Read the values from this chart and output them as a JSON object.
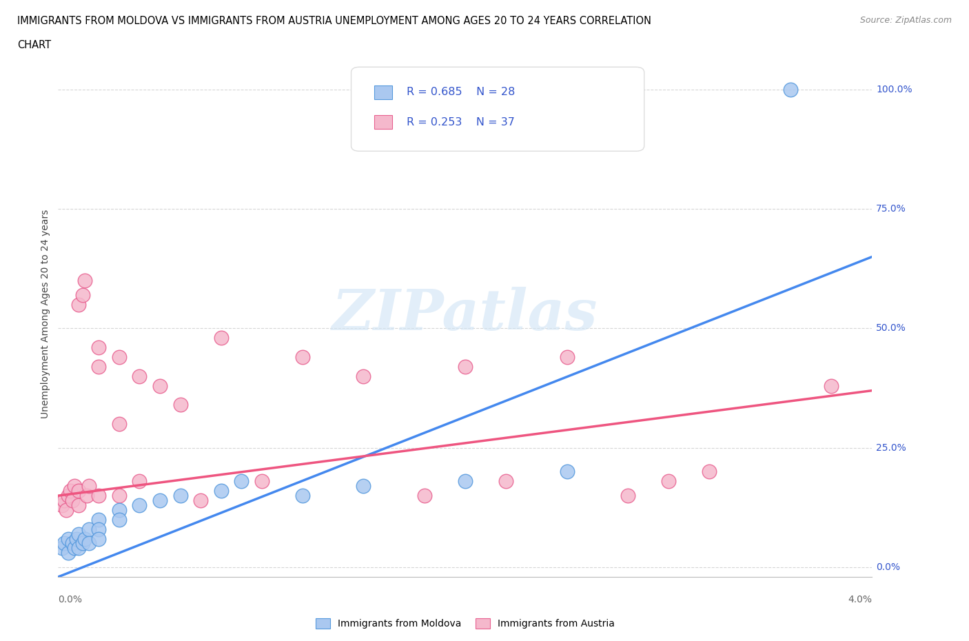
{
  "title_line1": "IMMIGRANTS FROM MOLDOVA VS IMMIGRANTS FROM AUSTRIA UNEMPLOYMENT AMONG AGES 20 TO 24 YEARS CORRELATION",
  "title_line2": "CHART",
  "source": "Source: ZipAtlas.com",
  "ylabel": "Unemployment Among Ages 20 to 24 years",
  "y_ticks": [
    0.0,
    0.25,
    0.5,
    0.75,
    1.0
  ],
  "y_tick_labels": [
    "0.0%",
    "25.0%",
    "50.0%",
    "75.0%",
    "100.0%"
  ],
  "x_range": [
    0.0,
    0.04
  ],
  "y_range": [
    -0.02,
    1.08
  ],
  "moldova_color": "#aac8f0",
  "moldova_edge_color": "#5599dd",
  "austria_color": "#f5b8cc",
  "austria_edge_color": "#e86090",
  "moldova_R": 0.685,
  "moldova_N": 28,
  "austria_R": 0.253,
  "austria_N": 37,
  "legend_text_color": "#3355cc",
  "watermark": "ZIPatlas",
  "moldova_x": [
    0.0002,
    0.0003,
    0.0005,
    0.0005,
    0.0007,
    0.0008,
    0.0009,
    0.001,
    0.001,
    0.0012,
    0.0013,
    0.0015,
    0.0015,
    0.002,
    0.002,
    0.002,
    0.003,
    0.003,
    0.004,
    0.005,
    0.006,
    0.008,
    0.009,
    0.012,
    0.015,
    0.02,
    0.025,
    0.036
  ],
  "moldova_y": [
    0.04,
    0.05,
    0.03,
    0.06,
    0.05,
    0.04,
    0.06,
    0.04,
    0.07,
    0.05,
    0.06,
    0.08,
    0.05,
    0.1,
    0.08,
    0.06,
    0.12,
    0.1,
    0.13,
    0.14,
    0.15,
    0.16,
    0.18,
    0.15,
    0.17,
    0.18,
    0.2,
    1.0
  ],
  "austria_x": [
    0.0002,
    0.0003,
    0.0004,
    0.0005,
    0.0006,
    0.0007,
    0.0008,
    0.001,
    0.001,
    0.001,
    0.0012,
    0.0013,
    0.0014,
    0.0015,
    0.002,
    0.002,
    0.002,
    0.003,
    0.003,
    0.003,
    0.004,
    0.004,
    0.005,
    0.006,
    0.007,
    0.008,
    0.01,
    0.012,
    0.015,
    0.018,
    0.02,
    0.022,
    0.025,
    0.028,
    0.03,
    0.032,
    0.038
  ],
  "austria_y": [
    0.13,
    0.14,
    0.12,
    0.15,
    0.16,
    0.14,
    0.17,
    0.55,
    0.13,
    0.16,
    0.57,
    0.6,
    0.15,
    0.17,
    0.46,
    0.15,
    0.42,
    0.3,
    0.44,
    0.15,
    0.4,
    0.18,
    0.38,
    0.34,
    0.14,
    0.48,
    0.18,
    0.44,
    0.4,
    0.15,
    0.42,
    0.18,
    0.44,
    0.15,
    0.18,
    0.2,
    0.38
  ],
  "moldova_trend_x": [
    0.0,
    0.04
  ],
  "moldova_trend_y": [
    -0.02,
    0.65
  ],
  "austria_trend_x": [
    0.0,
    0.04
  ],
  "austria_trend_y": [
    0.15,
    0.37
  ]
}
